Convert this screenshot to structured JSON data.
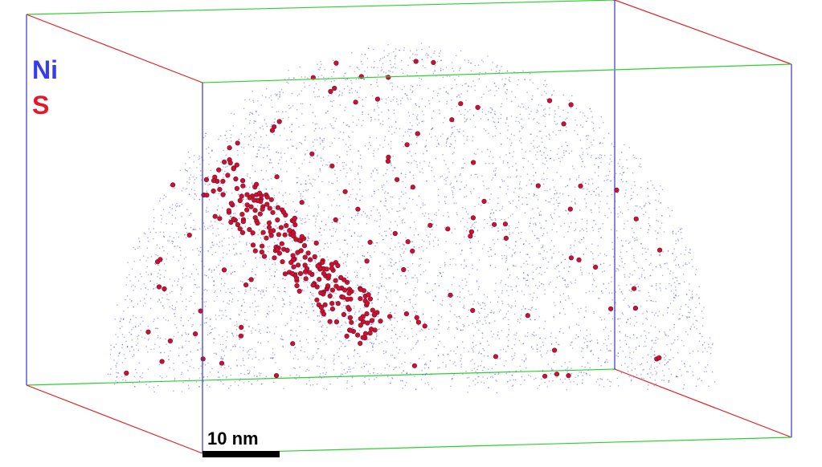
{
  "legend": {
    "items": [
      "Ni",
      "S"
    ]
  },
  "scale_bar": {
    "label": "10 nm"
  }
}
